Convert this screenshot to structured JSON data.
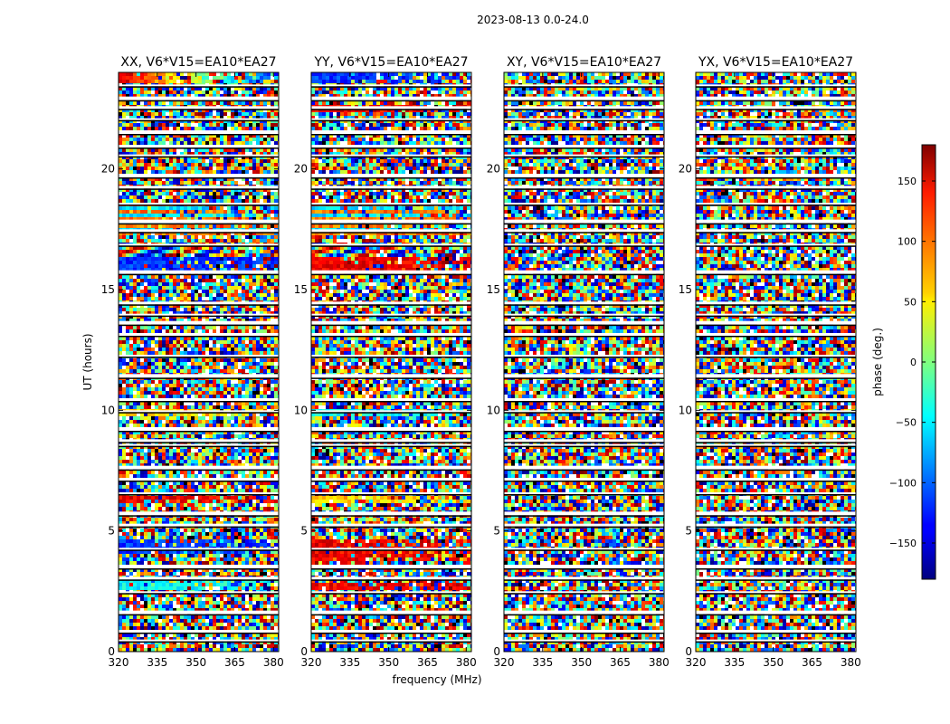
{
  "chart_data": {
    "type": "heatmap",
    "suptitle": "2023-08-13 0.0-24.0",
    "xlabel": "frequency (MHz)",
    "ylabel": "UT (hours)",
    "xlim": [
      320,
      382
    ],
    "ylim": [
      0,
      24
    ],
    "x_ticks": [
      320,
      335,
      350,
      365,
      380
    ],
    "y_ticks": [
      0,
      5,
      10,
      15,
      20
    ],
    "panels": [
      {
        "title": "XX, V6*V15=EA10*EA27",
        "polarization": "XX",
        "coherent_bands": [
          [
            23.6,
            24.0,
            "gradient"
          ],
          [
            17.3,
            18.6,
            "mixed"
          ],
          [
            16.3,
            17.0,
            "wavy"
          ],
          [
            15.7,
            16.3,
            "blue"
          ],
          [
            9.7,
            10.0,
            "yellow"
          ],
          [
            6.2,
            6.5,
            "red"
          ],
          [
            4.0,
            4.6,
            "blue"
          ],
          [
            2.5,
            3.0,
            "cyan"
          ]
        ]
      },
      {
        "title": "YY, V6*V15=EA10*EA27",
        "polarization": "YY",
        "coherent_bands": [
          [
            23.6,
            24.0,
            "blue"
          ],
          [
            22.3,
            22.6,
            "red"
          ],
          [
            17.3,
            18.6,
            "mixed"
          ],
          [
            16.3,
            17.0,
            "wavy"
          ],
          [
            15.7,
            16.3,
            "red"
          ],
          [
            9.7,
            10.0,
            "cyan"
          ],
          [
            6.2,
            6.5,
            "yellow"
          ],
          [
            3.8,
            4.6,
            "red"
          ],
          [
            2.5,
            2.8,
            "red"
          ]
        ]
      },
      {
        "title": "XY, V6*V15=EA10*EA27",
        "polarization": "XY",
        "coherent_bands": []
      },
      {
        "title": "YX, V6*V15=EA10*EA27",
        "polarization": "YX",
        "coherent_bands": []
      }
    ],
    "flagged_ut_gaps": [
      0.5,
      0.9,
      1.7,
      2.5,
      3.1,
      3.6,
      4.3,
      5.3,
      5.8,
      6.6,
      7.2,
      7.7,
      8.6,
      8.8,
      9.3,
      10.0,
      10.5,
      11.5,
      12.3,
      13.2,
      13.7,
      14.0,
      14.5,
      15.8,
      16.9,
      17.5,
      17.9,
      18.6,
      19.3,
      19.8,
      20.6,
      21.0,
      21.6,
      22.1,
      22.6,
      23.0,
      23.5
    ],
    "colorbar": {
      "label": "phase (deg.)",
      "range": [
        -180,
        180
      ],
      "ticks": [
        150,
        100,
        50,
        0,
        -50,
        -100,
        -150
      ],
      "tick_labels": [
        "150",
        "100",
        "50",
        "0",
        "−50",
        "−100",
        "−150"
      ],
      "colormap": "jet"
    }
  }
}
